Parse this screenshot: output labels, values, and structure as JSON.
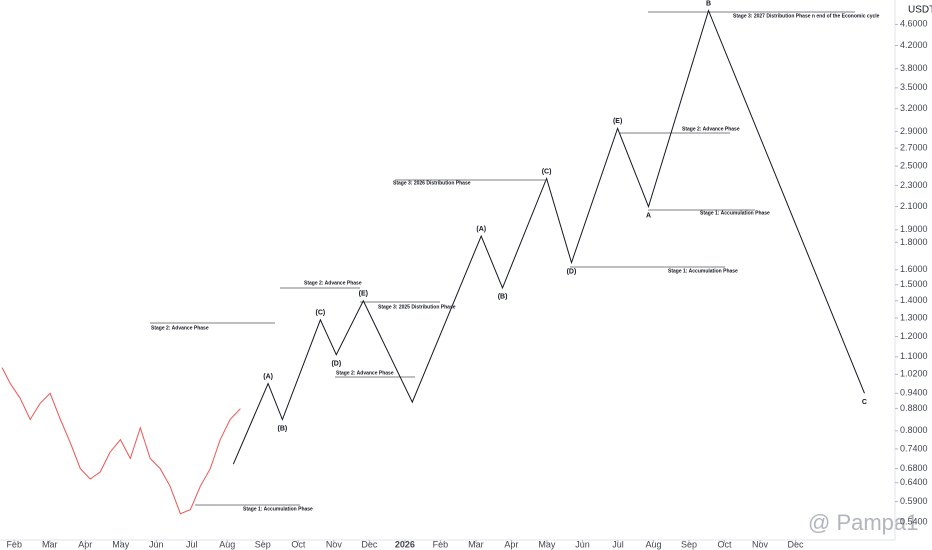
{
  "chart_data": {
    "type": "line",
    "unit": "USDT",
    "watermark": "@ Pampa1",
    "log_scale": true,
    "xlim": [
      0.6,
      25.8
    ],
    "ylim": [
      0.5,
      5.0
    ],
    "xticks": [
      {
        "value": 1,
        "label": "Feb"
      },
      {
        "value": 2,
        "label": "Mar"
      },
      {
        "value": 3,
        "label": "Apr"
      },
      {
        "value": 4,
        "label": "May"
      },
      {
        "value": 5,
        "label": "Jun"
      },
      {
        "value": 6,
        "label": "Jul"
      },
      {
        "value": 7,
        "label": "Aug"
      },
      {
        "value": 8,
        "label": "Sep"
      },
      {
        "value": 9,
        "label": "Oct"
      },
      {
        "value": 10,
        "label": "Nov"
      },
      {
        "value": 11,
        "label": "Dec"
      },
      {
        "value": 12,
        "label": "2026"
      },
      {
        "value": 13,
        "label": "Feb"
      },
      {
        "value": 14,
        "label": "Mar"
      },
      {
        "value": 15,
        "label": "Apr"
      },
      {
        "value": 16,
        "label": "May"
      },
      {
        "value": 17,
        "label": "Jun"
      },
      {
        "value": 18,
        "label": "Jul"
      },
      {
        "value": 19,
        "label": "Aug"
      },
      {
        "value": 20,
        "label": "Sep"
      },
      {
        "value": 21,
        "label": "Oct"
      },
      {
        "value": 22,
        "label": "Nov"
      },
      {
        "value": 23,
        "label": "Dec"
      }
    ],
    "yticks": [
      {
        "value": 4.6,
        "label": "4.6000"
      },
      {
        "value": 4.2,
        "label": "4.2000"
      },
      {
        "value": 3.8,
        "label": "3.8000"
      },
      {
        "value": 3.5,
        "label": "3.5000"
      },
      {
        "value": 3.2,
        "label": "3.2000"
      },
      {
        "value": 2.9,
        "label": "2.9000"
      },
      {
        "value": 2.7,
        "label": "2.7000"
      },
      {
        "value": 2.5,
        "label": "2.5000"
      },
      {
        "value": 2.3,
        "label": "2.3000"
      },
      {
        "value": 2.1,
        "label": "2.1000"
      },
      {
        "value": 1.9,
        "label": "1.9000"
      },
      {
        "value": 1.8,
        "label": "1.8000"
      },
      {
        "value": 1.6,
        "label": "1.6000"
      },
      {
        "value": 1.5,
        "label": "1.5000"
      },
      {
        "value": 1.4,
        "label": "1.4000"
      },
      {
        "value": 1.3,
        "label": "1.3000"
      },
      {
        "value": 1.2,
        "label": "1.2000"
      },
      {
        "value": 1.1,
        "label": "1.1000"
      },
      {
        "value": 1.02,
        "label": "1.0200"
      },
      {
        "value": 0.94,
        "label": "0.9400"
      },
      {
        "value": 0.88,
        "label": "0.8800"
      },
      {
        "value": 0.8,
        "label": "0.8000"
      },
      {
        "value": 0.74,
        "label": "0.7400"
      },
      {
        "value": 0.68,
        "label": "0.6800"
      },
      {
        "value": 0.64,
        "label": "0.6400"
      },
      {
        "value": 0.59,
        "label": "0.5900"
      },
      {
        "value": 0.54,
        "label": "0.5400"
      }
    ],
    "series": [
      {
        "color": "#ef5350",
        "x": [
          0.66,
          0.89,
          1.17,
          1.45,
          1.73,
          2.01,
          2.3,
          2.58,
          2.86,
          3.14,
          3.42,
          3.7,
          3.99,
          4.27,
          4.55,
          4.83,
          5.11,
          5.39,
          5.68,
          5.96,
          6.24,
          6.52,
          6.8,
          7.08,
          7.37
        ],
        "values": [
          1.05,
          0.98,
          0.92,
          0.84,
          0.9,
          0.94,
          0.84,
          0.76,
          0.68,
          0.65,
          0.67,
          0.73,
          0.77,
          0.71,
          0.81,
          0.71,
          0.68,
          0.63,
          0.56,
          0.57,
          0.63,
          0.68,
          0.77,
          0.84,
          0.88
        ]
      },
      {
        "color": "#131722",
        "x": [
          7.17,
          8.15,
          8.55,
          9.62,
          10.07,
          10.83,
          12.21,
          14.15,
          14.75,
          15.99,
          16.69,
          17.99,
          18.86,
          20.55,
          24.94
        ],
        "values": [
          0.693,
          0.98,
          0.84,
          1.29,
          1.11,
          1.4,
          0.905,
          1.85,
          1.48,
          2.37,
          1.65,
          2.94,
          2.1,
          4.88,
          0.94
        ],
        "point_labels": [
          null,
          "(A)",
          "(B)",
          "(C)",
          "(D)",
          "(E)",
          null,
          "(A)",
          "(B)",
          "(C)",
          "(D)",
          "(E)",
          "A",
          "B",
          "C"
        ]
      }
    ],
    "annotations": [
      "Stage 1: Accumulation Phase",
      "Stage 2: Advance Phase",
      "Stage 2: Advance Phase",
      "Stage 3: 2025 Distribution Phase",
      "Stage 2: Advance Phase",
      "Stage 3: 2026 Distribution Phase",
      "Stage 1: Accumulation Phase",
      "Stage 2: Advance Phase",
      "Stage 1: Accumulation Phase",
      "Stage 3: 2027 Distribution Phase n end of the Economic cycle"
    ]
  }
}
